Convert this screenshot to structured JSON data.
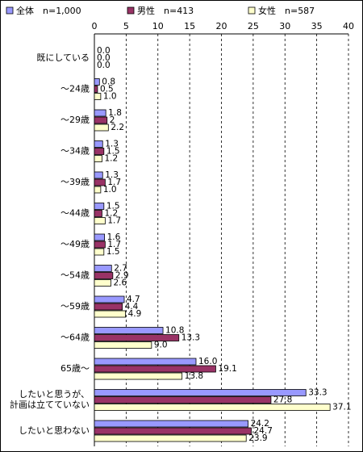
{
  "chart_data": {
    "type": "bar",
    "orientation": "horizontal",
    "categories": [
      "既にしている",
      "～24歳",
      "～29歳",
      "～34歳",
      "～39歳",
      "～44歳",
      "～49歳",
      "～54歳",
      "～59歳",
      "～64歳",
      "65歳～",
      "したいと思うが、\n計画は立てていない",
      "したいと思わない"
    ],
    "series": [
      {
        "name": "全体　n=1,000",
        "color": "#9999ff",
        "values": [
          0,
          0.8,
          1.8,
          1.3,
          1.3,
          1.5,
          1.6,
          2.7,
          4.7,
          10.8,
          16,
          33.3,
          24.2
        ],
        "value_labels": [
          "0.0",
          "0.8",
          "1.8",
          "1.3",
          "1.3",
          "1.5",
          "1.6",
          "2.7",
          "4.7",
          "10.8",
          "16.0",
          "33.3",
          "24.2"
        ]
      },
      {
        "name": "男性　n=413",
        "color": "#993366",
        "values": [
          0,
          0.5,
          2,
          1.5,
          1.7,
          1.2,
          1.7,
          2.9,
          4.4,
          13.3,
          19.1,
          27.8,
          24.7
        ],
        "value_labels": [
          "0.0",
          "0.5",
          "2",
          "1.5",
          "1.7",
          "1.2",
          "1.7",
          "2.9",
          "4.4",
          "13.3",
          "19.1",
          "27.8",
          "24.7"
        ]
      },
      {
        "name": "女性　n=587",
        "color": "#ffffcc",
        "values": [
          0,
          1,
          2.2,
          1.2,
          1,
          1.7,
          1.5,
          2.6,
          4.9,
          9,
          13.8,
          37.1,
          23.9
        ],
        "value_labels": [
          "0.0",
          "1.0",
          "2.2",
          "1.2",
          "1.0",
          "1.7",
          "1.5",
          "2.6",
          "4.9",
          "9.0",
          "13.8",
          "37.1",
          "23.9"
        ]
      }
    ],
    "xlim": [
      0,
      40
    ],
    "xticks": [
      0,
      5,
      10,
      15,
      20,
      25,
      30,
      35,
      40
    ],
    "grid": true
  }
}
